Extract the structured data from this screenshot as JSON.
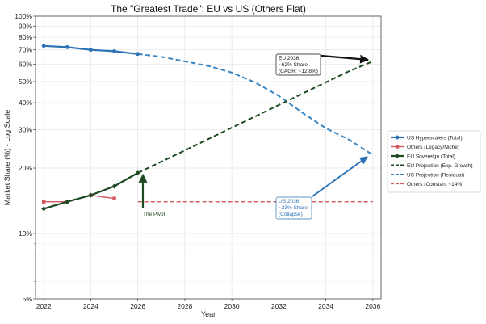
{
  "chart_data": {
    "type": "line",
    "title": "The \"Greatest Trade\": EU vs US (Others Flat)",
    "xlabel": "Year",
    "ylabel": "Market Share (%) - Log Scale",
    "y_scale": "log",
    "xlim": [
      2021.65,
      2036.35
    ],
    "ylim": [
      5,
      100
    ],
    "x_ticks": [
      2022,
      2024,
      2026,
      2028,
      2030,
      2032,
      2034,
      2036
    ],
    "y_ticks": [
      5,
      10,
      20,
      30,
      40,
      50,
      60,
      70,
      80,
      90,
      100
    ],
    "y_tick_labels": [
      "5%",
      "10%",
      "20%",
      "30%",
      "40%",
      "50%",
      "60%",
      "70%",
      "80%",
      "90%",
      "100%"
    ],
    "grid": true,
    "legend_position": "right, vertically centered",
    "colors": {
      "us": "#2b73b5",
      "us_projection": "#3a86c4",
      "others": "#d1585c",
      "eu": "#1c4a22",
      "annotation_text_eu": "#1c4a22",
      "annotation_text_us": "#2b73b5"
    },
    "series": [
      {
        "name": "US Hyperscalers (Total)",
        "style": "solid-circle",
        "x": [
          2022,
          2023,
          2024,
          2025,
          2026
        ],
        "values": [
          73,
          72,
          70,
          69,
          67
        ]
      },
      {
        "name": "Others (Legacy/Niche)",
        "style": "solid-square",
        "x": [
          2022,
          2023,
          2024,
          2025
        ],
        "values": [
          14,
          14,
          15,
          14.5
        ]
      },
      {
        "name": "EU Sovereign (Total)",
        "style": "solid-diamond",
        "x": [
          2022,
          2023,
          2024,
          2025,
          2026
        ],
        "values": [
          13,
          14,
          15,
          16.5,
          19
        ]
      },
      {
        "name": "EU Projection (Exp. Growth)",
        "style": "dashed",
        "x": [
          2026,
          2027,
          2028,
          2029,
          2030,
          2031,
          2032,
          2033,
          2034,
          2035,
          2036
        ],
        "values": [
          19,
          21.4,
          24.1,
          27.2,
          30.7,
          34.6,
          39.0,
          44.0,
          49.6,
          55.9,
          62
        ]
      },
      {
        "name": "US Projection (Residual)",
        "style": "dashed",
        "x": [
          2026,
          2027,
          2028,
          2029,
          2030,
          2031,
          2032,
          2033,
          2034,
          2035,
          2036
        ],
        "values": [
          67,
          65,
          62,
          59,
          55,
          49.5,
          43,
          36,
          30.5,
          27,
          23
        ]
      },
      {
        "name": "Others (Constant ~14%)",
        "style": "dashed-thin",
        "x": [
          2026,
          2036
        ],
        "values": [
          14,
          14
        ]
      }
    ],
    "annotations": [
      {
        "id": "eu",
        "lines": [
          "EU 2036:",
          "~62% Share",
          "(CAGR: ~12.8%)"
        ],
        "target": [
          2036,
          62
        ]
      },
      {
        "id": "us",
        "lines": [
          "US 2036:",
          "~23% Share",
          "(Collapse)"
        ],
        "target": [
          2036,
          23
        ]
      },
      {
        "id": "pivot",
        "lines": [
          "The Pivot"
        ],
        "target": [
          2026,
          19
        ]
      }
    ]
  }
}
